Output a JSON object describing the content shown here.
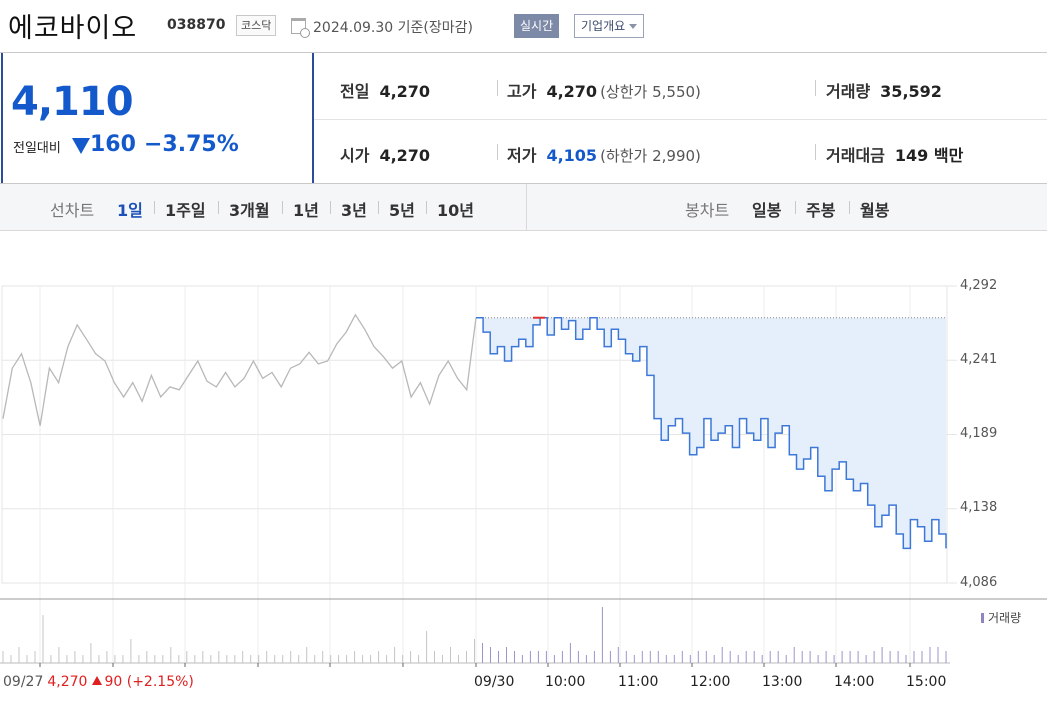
{
  "header": {
    "stock_name": "에코바이오",
    "stock_code": "038870",
    "market": "코스닥",
    "date_basis": "2024.09.30  기준(장마감)",
    "realtime_button": "실시간",
    "company_button": "기업개요"
  },
  "price": {
    "current": "4,110",
    "compare_label": "전일대비",
    "change": "160",
    "change_rate": "−3.75%",
    "direction": "down"
  },
  "stats": {
    "prev_close": {
      "label": "전일",
      "value": "4,270"
    },
    "high": {
      "label": "고가",
      "value": "4,270",
      "limit_text": "(상한가 5,550)"
    },
    "volume": {
      "label": "거래량",
      "value": "35,592"
    },
    "open": {
      "label": "시가",
      "value": "4,270"
    },
    "low": {
      "label": "저가",
      "value": "4,105",
      "limit_text": "(하한가 2,990)"
    },
    "amount": {
      "label": "거래대금",
      "value": "149 백만"
    }
  },
  "period_tabs": {
    "label": "선차트",
    "items": [
      "1일",
      "1주일",
      "3개월",
      "1년",
      "3년",
      "5년",
      "10년"
    ],
    "active": "1일"
  },
  "candle_tabs": {
    "label": "봉차트",
    "items": [
      "일봉",
      "주봉",
      "월봉"
    ]
  },
  "chart_data": {
    "type": "line",
    "y_ticks": [
      "4,292",
      "4,241",
      "4,189",
      "4,138",
      "4,086"
    ],
    "ylim": [
      4086,
      4292
    ],
    "reference_price": 4270,
    "x_ticks": [
      "09/30",
      "10:00",
      "11:00",
      "12:00",
      "13:00",
      "14:00",
      "15:00"
    ],
    "grid": true,
    "prev_day": {
      "date": "09/27",
      "price": "4,270",
      "change": "90",
      "change_rate": "(+2.15%)"
    },
    "volume_legend": "거래량",
    "prev_series": [
      4200,
      4235,
      4245,
      4225,
      4195,
      4235,
      4225,
      4250,
      4265,
      4255,
      4245,
      4240,
      4225,
      4215,
      4225,
      4212,
      4230,
      4215,
      4222,
      4220,
      4230,
      4240,
      4226,
      4222,
      4232,
      4222,
      4228,
      4240,
      4228,
      4232,
      4222,
      4235,
      4238,
      4246,
      4238,
      4240,
      4252,
      4260,
      4272,
      4262,
      4250,
      4243,
      4235,
      4240,
      4215,
      4225,
      4210,
      4230,
      4240,
      4228,
      4220,
      4270
    ],
    "today_series": [
      4270,
      4260,
      4245,
      4250,
      4240,
      4250,
      4255,
      4250,
      4265,
      4270,
      4258,
      4270,
      4262,
      4268,
      4255,
      4262,
      4270,
      4262,
      4250,
      4262,
      4255,
      4245,
      4240,
      4250,
      4230,
      4200,
      4185,
      4195,
      4200,
      4190,
      4175,
      4180,
      4200,
      4185,
      4190,
      4195,
      4180,
      4200,
      4190,
      4185,
      4200,
      4180,
      4190,
      4195,
      4175,
      4165,
      4172,
      4180,
      4160,
      4150,
      4165,
      4170,
      4158,
      4150,
      4155,
      4140,
      4125,
      4133,
      4140,
      4120,
      4110,
      4130,
      4125,
      4115,
      4130,
      4120,
      4110
    ],
    "volume_series": [
      3,
      2,
      4,
      2,
      3,
      12,
      2,
      4,
      2,
      3,
      2,
      5,
      2,
      3,
      2,
      2,
      6,
      2,
      3,
      2,
      2,
      4,
      2,
      3,
      2,
      3,
      2,
      3,
      2,
      2,
      3,
      2,
      2,
      3,
      2,
      2,
      3,
      2,
      4,
      2,
      3,
      2,
      2,
      2,
      3,
      2,
      2,
      3,
      2,
      4,
      2,
      3,
      2,
      8,
      3,
      2,
      4,
      2,
      3,
      6,
      5,
      4,
      3,
      4,
      3,
      2,
      3,
      3,
      3,
      2,
      3,
      5,
      3,
      2,
      3,
      14,
      3,
      4,
      3,
      2,
      3,
      3,
      3,
      2,
      2,
      3,
      2,
      3,
      3,
      2,
      4,
      3,
      2,
      3,
      3,
      2,
      3,
      3,
      2,
      4,
      3,
      3,
      2,
      3,
      2,
      3,
      3,
      3,
      2,
      3,
      4,
      3,
      3,
      2,
      3,
      3,
      4,
      4,
      3
    ]
  }
}
